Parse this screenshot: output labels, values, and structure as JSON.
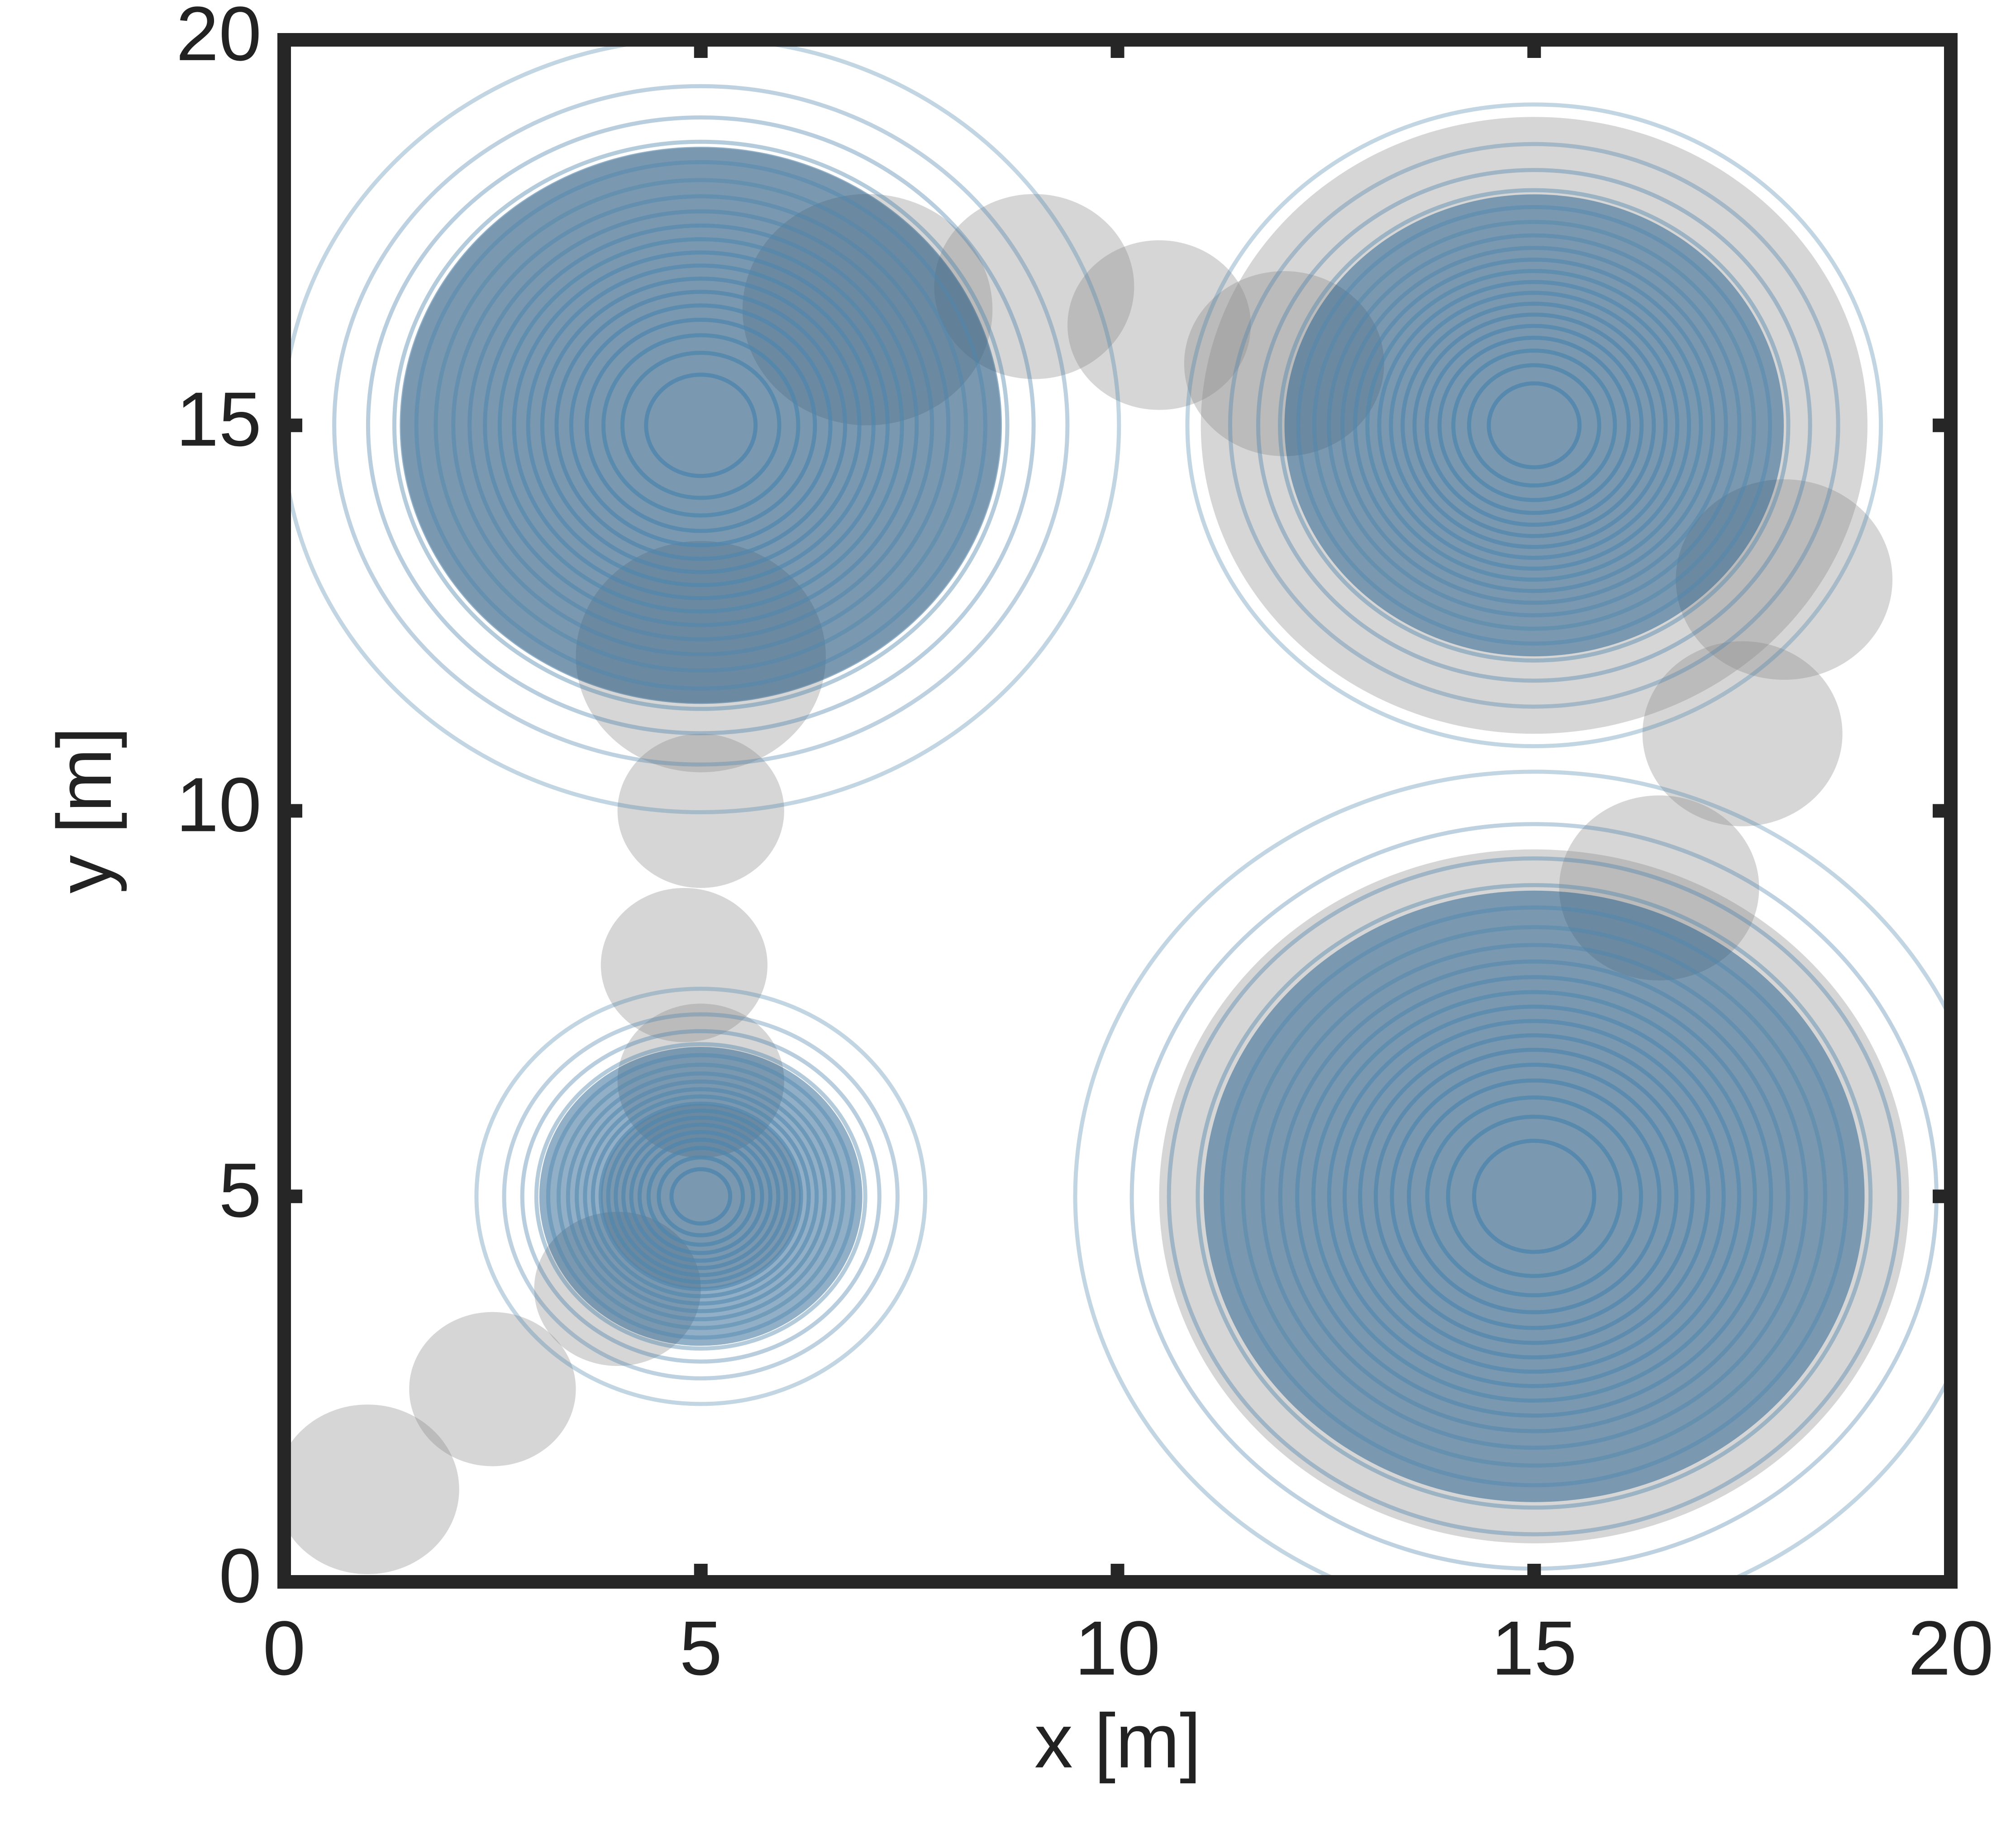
{
  "chart_data": {
    "type": "contour",
    "xlabel": "x [m]",
    "ylabel": "y [m]",
    "xlim": [
      0,
      20
    ],
    "ylim": [
      0,
      20
    ],
    "xticks": [
      0,
      5,
      10,
      15,
      20
    ],
    "yticks": [
      0,
      5,
      10,
      15,
      20
    ],
    "contour_color": "#4f86ad",
    "shade_color": "#0b4f86",
    "trajectory_color": "#8a8a8a",
    "levels": [
      0.05,
      0.1,
      0.15,
      0.2,
      0.25,
      0.3,
      0.35,
      0.4,
      0.45,
      0.5,
      0.55,
      0.6,
      0.65,
      0.7,
      0.75,
      0.8,
      0.85,
      0.9,
      0.95
    ],
    "peaks": [
      {
        "x": 5,
        "y": 15,
        "sigma": 2.05
      },
      {
        "x": 15,
        "y": 15,
        "sigma": 1.7
      },
      {
        "x": 5,
        "y": 5,
        "sigma": 1.1
      },
      {
        "x": 15,
        "y": 5,
        "sigma": 2.25
      }
    ],
    "trajectory": {
      "x": [
        1,
        2.5,
        4,
        5,
        5,
        4.8,
        5,
        5,
        5,
        7,
        9,
        10.5,
        12,
        15,
        18,
        17.5,
        16.5,
        15
      ],
      "y": [
        1.2,
        2.5,
        3.8,
        5,
        6.5,
        8,
        10,
        12,
        15,
        16.5,
        16.8,
        16.3,
        15.8,
        15,
        13,
        11,
        9,
        5
      ],
      "sizes": [
        1.1,
        1,
        1,
        1.2,
        1,
        1,
        1,
        1.5,
        3.6,
        1.5,
        1.2,
        1.1,
        1.2,
        4,
        1.3,
        1.2,
        1.2,
        4.5
      ]
    }
  }
}
